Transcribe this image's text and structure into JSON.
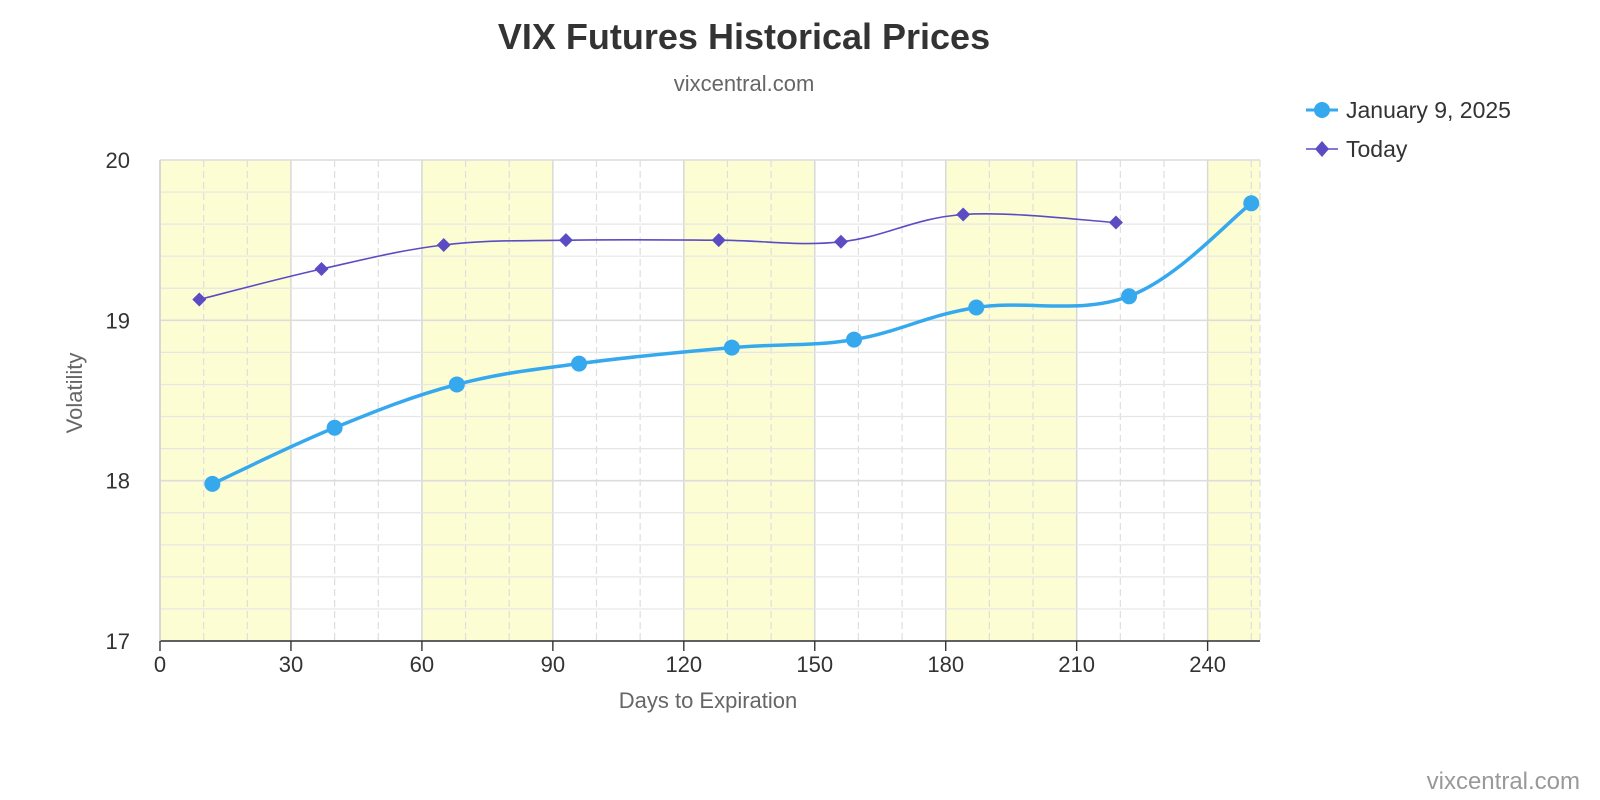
{
  "chart_data": {
    "type": "line",
    "title": "VIX Futures Historical Prices",
    "subtitle": "vixcentral.com",
    "credit": "vixcentral.com",
    "xlabel": "Days to Expiration",
    "ylabel": "Volatility",
    "xlim": [
      0,
      252
    ],
    "ylim": [
      17,
      20
    ],
    "x_ticks": [
      0,
      30,
      60,
      90,
      120,
      150,
      180,
      210,
      240
    ],
    "y_ticks": [
      17,
      18,
      19,
      20
    ],
    "x_minor_step": 10,
    "y_minor_step": 0.2,
    "grid": true,
    "legend_position": "top-right",
    "shaded_bands": [
      [
        0,
        30
      ],
      [
        60,
        90
      ],
      [
        120,
        150
      ],
      [
        180,
        210
      ],
      [
        240,
        252
      ]
    ],
    "band_color": "#fdfdd3",
    "series": [
      {
        "name": "January 9, 2025",
        "color": "#36a9ee",
        "marker": "circle",
        "x": [
          12,
          40,
          68,
          96,
          131,
          159,
          187,
          222,
          250
        ],
        "y": [
          17.98,
          18.33,
          18.6,
          18.73,
          18.83,
          18.88,
          19.08,
          19.15,
          19.73
        ]
      },
      {
        "name": "Today",
        "color": "#5b4cc4",
        "marker": "diamond",
        "x": [
          9,
          37,
          65,
          93,
          128,
          156,
          184,
          219
        ],
        "y": [
          19.13,
          19.32,
          19.47,
          19.5,
          19.5,
          19.49,
          19.66,
          19.61
        ]
      }
    ]
  }
}
